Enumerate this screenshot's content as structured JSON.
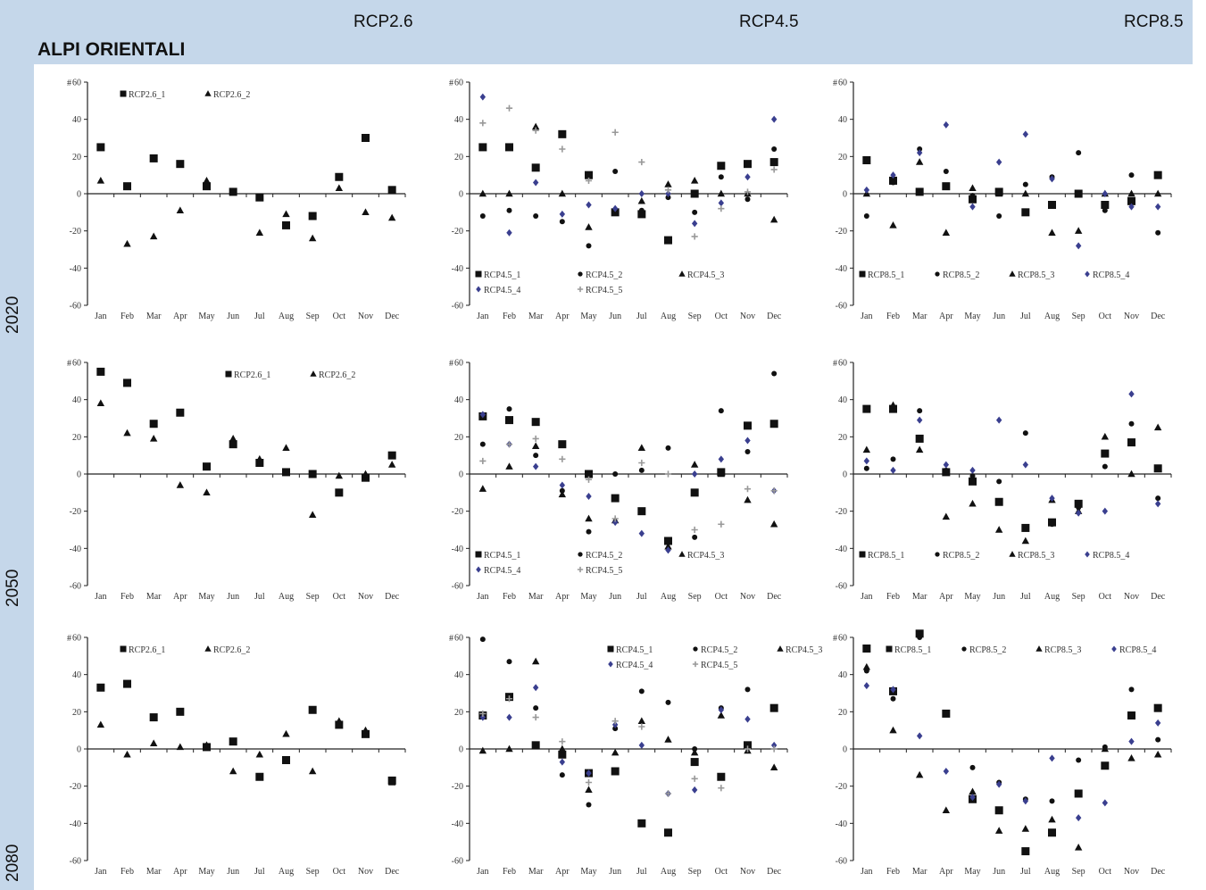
{
  "header": {
    "scenarios": [
      "RCP2.6",
      "RCP4.5",
      "RCP8.5"
    ],
    "region": "ALPI ORIENTALI",
    "years": [
      "2020",
      "2050",
      "2080"
    ]
  },
  "colors": {
    "header_band": "#c5d7ea",
    "marker_black": "#111111",
    "marker_blue": "#3a3f8f",
    "marker_grey": "#999999"
  },
  "chart_data": [
    {
      "type": "scatter",
      "scenario": "RCP2.6",
      "year": "2020",
      "ylabel": "#",
      "ylim": [
        -60,
        60
      ],
      "yticks": [
        -60,
        -40,
        -20,
        0,
        20,
        40,
        60
      ],
      "categories": [
        "Jan",
        "Feb",
        "Mar",
        "Apr",
        "May",
        "Jun",
        "Jul",
        "Aug",
        "Sep",
        "Oct",
        "Nov",
        "Dec"
      ],
      "legend": "top-left",
      "series": [
        {
          "name": "RCP2.6_1",
          "marker": "square",
          "values": [
            25,
            4,
            19,
            16,
            4,
            1,
            -2,
            -17,
            -12,
            9,
            30,
            2
          ]
        },
        {
          "name": "RCP2.6_2",
          "marker": "triangle",
          "values": [
            7,
            -27,
            -23,
            -9,
            7,
            1,
            -21,
            -11,
            -24,
            3,
            -10,
            -13
          ]
        }
      ]
    },
    {
      "type": "scatter",
      "scenario": "RCP4.5",
      "year": "2020",
      "ylabel": "#",
      "ylim": [
        -60,
        60
      ],
      "yticks": [
        -60,
        -40,
        -20,
        0,
        20,
        40,
        60
      ],
      "categories": [
        "Jan",
        "Feb",
        "Mar",
        "Apr",
        "May",
        "Jun",
        "Jul",
        "Aug",
        "Sep",
        "Oct",
        "Nov",
        "Dec"
      ],
      "legend": "bottom-left",
      "series": [
        {
          "name": "RCP4.5_1",
          "marker": "square",
          "values": [
            25,
            25,
            14,
            32,
            10,
            -10,
            -11,
            -25,
            0,
            15,
            16,
            17
          ]
        },
        {
          "name": "RCP4.5_2",
          "marker": "circle",
          "values": [
            -12,
            -9,
            -12,
            -15,
            -28,
            12,
            -9,
            -2,
            -10,
            9,
            -3,
            24
          ]
        },
        {
          "name": "RCP4.5_3",
          "marker": "triangle",
          "values": [
            0,
            0,
            36,
            0,
            -18,
            -9,
            -4,
            5,
            7,
            0,
            0,
            -14
          ]
        },
        {
          "name": "RCP4.5_4",
          "marker": "diamond",
          "values": [
            52,
            -21,
            6,
            -11,
            -6,
            -8,
            0,
            0,
            -16,
            -5,
            9,
            40
          ]
        },
        {
          "name": "RCP4.5_5",
          "marker": "star",
          "values": [
            38,
            46,
            34,
            24,
            7,
            33,
            17,
            2,
            -23,
            -8,
            1,
            13
          ]
        }
      ]
    },
    {
      "type": "scatter",
      "scenario": "RCP8.5",
      "year": "2020",
      "ylabel": "#",
      "ylim": [
        -60,
        60
      ],
      "yticks": [
        -60,
        -40,
        -20,
        0,
        20,
        40,
        60
      ],
      "categories": [
        "Jan",
        "Feb",
        "Mar",
        "Apr",
        "May",
        "Jun",
        "Jul",
        "Aug",
        "Sep",
        "Oct",
        "Nov",
        "Dec"
      ],
      "legend": "bottom-left",
      "series": [
        {
          "name": "RCP8.5_1",
          "marker": "square",
          "values": [
            18,
            7,
            1,
            4,
            -3,
            1,
            -10,
            -6,
            0,
            -6,
            -4,
            10
          ]
        },
        {
          "name": "RCP8.5_2",
          "marker": "circle",
          "values": [
            -12,
            6,
            24,
            12,
            -1,
            -12,
            5,
            9,
            22,
            -9,
            10,
            -21
          ]
        },
        {
          "name": "RCP8.5_3",
          "marker": "triangle",
          "values": [
            0,
            -17,
            17,
            -21,
            3,
            0,
            0,
            -21,
            -20,
            0,
            0,
            0
          ]
        },
        {
          "name": "RCP8.5_4",
          "marker": "diamond",
          "values": [
            2,
            10,
            22,
            37,
            -7,
            17,
            32,
            8,
            -28,
            0,
            -7,
            -7
          ]
        }
      ]
    },
    {
      "type": "scatter",
      "scenario": "RCP2.6",
      "year": "2050",
      "ylabel": "#",
      "ylim": [
        -60,
        60
      ],
      "yticks": [
        -60,
        -40,
        -20,
        0,
        20,
        40,
        60
      ],
      "categories": [
        "Jan",
        "Feb",
        "Mar",
        "Apr",
        "May",
        "Jun",
        "Jul",
        "Aug",
        "Sep",
        "Oct",
        "Nov",
        "Dec"
      ],
      "legend": "top-right",
      "series": [
        {
          "name": "RCP2.6_1",
          "marker": "square",
          "values": [
            55,
            49,
            27,
            33,
            4,
            16,
            6,
            1,
            0,
            -10,
            -2,
            10
          ]
        },
        {
          "name": "RCP2.6_2",
          "marker": "triangle",
          "values": [
            38,
            22,
            19,
            -6,
            -10,
            19,
            8,
            14,
            -22,
            -1,
            0,
            5
          ]
        }
      ]
    },
    {
      "type": "scatter",
      "scenario": "RCP4.5",
      "year": "2050",
      "ylabel": "#",
      "ylim": [
        -60,
        60
      ],
      "yticks": [
        -60,
        -40,
        -20,
        0,
        20,
        40,
        60
      ],
      "categories": [
        "Jan",
        "Feb",
        "Mar",
        "Apr",
        "May",
        "Jun",
        "Jul",
        "Aug",
        "Sep",
        "Oct",
        "Nov",
        "Dec"
      ],
      "legend": "bottom-left",
      "series": [
        {
          "name": "RCP4.5_1",
          "marker": "square",
          "values": [
            31,
            29,
            28,
            16,
            0,
            -13,
            -20,
            -36,
            -10,
            1,
            26,
            27
          ]
        },
        {
          "name": "RCP4.5_2",
          "marker": "circle",
          "values": [
            16,
            35,
            10,
            -9,
            -31,
            0,
            2,
            14,
            -34,
            34,
            12,
            54
          ]
        },
        {
          "name": "RCP4.5_3",
          "marker": "triangle",
          "values": [
            -8,
            4,
            15,
            -11,
            -24,
            -25,
            14,
            -39,
            5,
            0,
            -14,
            -27
          ]
        },
        {
          "name": "RCP4.5_4",
          "marker": "diamond",
          "values": [
            32,
            16,
            4,
            -6,
            -12,
            -26,
            -32,
            -41,
            0,
            8,
            18,
            -9
          ]
        },
        {
          "name": "RCP4.5_5",
          "marker": "star",
          "values": [
            7,
            16,
            19,
            8,
            -3,
            -24,
            6,
            0,
            -30,
            -27,
            -8,
            -9
          ]
        }
      ]
    },
    {
      "type": "scatter",
      "scenario": "RCP8.5",
      "year": "2050",
      "ylabel": "#",
      "ylim": [
        -60,
        60
      ],
      "yticks": [
        -60,
        -40,
        -20,
        0,
        20,
        40,
        60
      ],
      "categories": [
        "Jan",
        "Feb",
        "Mar",
        "Apr",
        "May",
        "Jun",
        "Jul",
        "Aug",
        "Sep",
        "Oct",
        "Nov",
        "Dec"
      ],
      "legend": "bottom-left",
      "series": [
        {
          "name": "RCP8.5_1",
          "marker": "square",
          "values": [
            35,
            35,
            19,
            1,
            -4,
            -15,
            -29,
            -26,
            -16,
            11,
            17,
            3
          ]
        },
        {
          "name": "RCP8.5_2",
          "marker": "circle",
          "values": [
            3,
            8,
            34,
            2,
            -1,
            -4,
            22,
            -27,
            -18,
            4,
            27,
            -13
          ]
        },
        {
          "name": "RCP8.5_3",
          "marker": "triangle",
          "values": [
            13,
            37,
            13,
            -23,
            -16,
            -30,
            -36,
            -14,
            -20,
            20,
            0,
            25
          ]
        },
        {
          "name": "RCP8.5_4",
          "marker": "diamond",
          "values": [
            7,
            2,
            29,
            5,
            2,
            29,
            5,
            -13,
            -21,
            -20,
            43,
            -16
          ]
        }
      ]
    },
    {
      "type": "scatter",
      "scenario": "RCP2.6",
      "year": "2080",
      "ylabel": "#",
      "ylim": [
        -60,
        60
      ],
      "yticks": [
        -60,
        -40,
        -20,
        0,
        20,
        40,
        60
      ],
      "categories": [
        "Jan",
        "Feb",
        "Mar",
        "Apr",
        "May",
        "Jun",
        "Jul",
        "Aug",
        "Sep",
        "Oct",
        "Nov",
        "Dec"
      ],
      "legend": "top-left",
      "series": [
        {
          "name": "RCP2.6_1",
          "marker": "square",
          "values": [
            33,
            35,
            17,
            20,
            1,
            4,
            -15,
            -6,
            21,
            13,
            8,
            -17
          ]
        },
        {
          "name": "RCP2.6_2",
          "marker": "triangle",
          "values": [
            13,
            -3,
            3,
            1,
            2,
            -12,
            -3,
            8,
            -12,
            15,
            10,
            -18
          ]
        }
      ]
    },
    {
      "type": "scatter",
      "scenario": "RCP4.5",
      "year": "2080",
      "ylabel": "#",
      "ylim": [
        -60,
        60
      ],
      "yticks": [
        -60,
        -40,
        -20,
        0,
        20,
        40,
        60
      ],
      "categories": [
        "Jan",
        "Feb",
        "Mar",
        "Apr",
        "May",
        "Jun",
        "Jul",
        "Aug",
        "Sep",
        "Oct",
        "Nov",
        "Dec"
      ],
      "legend": "top-right",
      "series": [
        {
          "name": "RCP4.5_1",
          "marker": "square",
          "values": [
            18,
            28,
            2,
            -3,
            -13,
            -12,
            -40,
            -45,
            -7,
            -15,
            2,
            22
          ]
        },
        {
          "name": "RCP4.5_2",
          "marker": "circle",
          "values": [
            59,
            47,
            22,
            -14,
            -30,
            11,
            31,
            25,
            0,
            22,
            32,
            22
          ]
        },
        {
          "name": "RCP4.5_3",
          "marker": "triangle",
          "values": [
            -1,
            0,
            47,
            0,
            -22,
            -2,
            15,
            5,
            -2,
            18,
            -1,
            -10
          ]
        },
        {
          "name": "RCP4.5_4",
          "marker": "diamond",
          "values": [
            17,
            17,
            33,
            -7,
            -13,
            13,
            2,
            -24,
            -22,
            21,
            16,
            2
          ]
        },
        {
          "name": "RCP4.5_5",
          "marker": "star",
          "values": [
            19,
            27,
            17,
            4,
            -18,
            15,
            12,
            -24,
            -16,
            -21,
            0,
            0
          ]
        }
      ]
    },
    {
      "type": "scatter",
      "scenario": "RCP8.5",
      "year": "2080",
      "ylabel": "#",
      "ylim": [
        -60,
        60
      ],
      "yticks": [
        -60,
        -40,
        -20,
        0,
        20,
        40,
        60
      ],
      "categories": [
        "Jan",
        "Feb",
        "Mar",
        "Apr",
        "May",
        "Jun",
        "Jul",
        "Aug",
        "Sep",
        "Oct",
        "Nov",
        "Dec"
      ],
      "legend": "top-left",
      "series": [
        {
          "name": "RCP8.5_1",
          "marker": "square",
          "values": [
            54,
            31,
            62,
            19,
            -27,
            -33,
            -55,
            -45,
            -24,
            -9,
            18,
            22
          ]
        },
        {
          "name": "RCP8.5_2",
          "marker": "circle",
          "values": [
            42,
            27,
            60,
            19,
            -10,
            -18,
            -27,
            -28,
            -6,
            1,
            32,
            5
          ]
        },
        {
          "name": "RCP8.5_3",
          "marker": "triangle",
          "values": [
            44,
            10,
            -14,
            -33,
            -23,
            -44,
            -43,
            -38,
            -53,
            0,
            -5,
            -3
          ]
        },
        {
          "name": "RCP8.5_4",
          "marker": "diamond",
          "values": [
            34,
            32,
            7,
            -12,
            -26,
            -19,
            -28,
            -5,
            -37,
            -29,
            4,
            14
          ]
        }
      ]
    }
  ]
}
